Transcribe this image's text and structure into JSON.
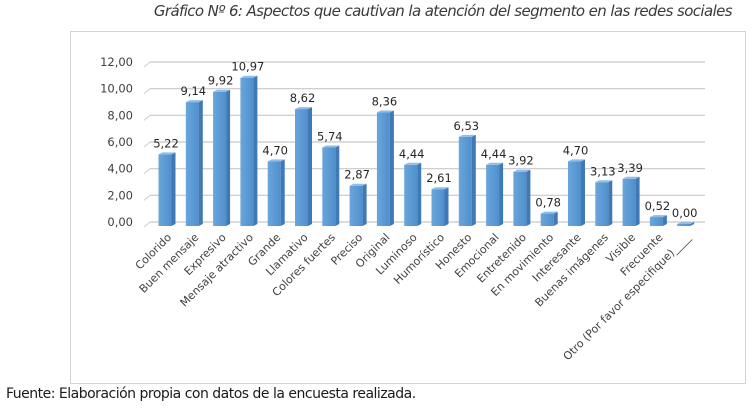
{
  "title": "Gráfico Nº 6: Aspectos que cautivan la atención del segmento en las redes sociales",
  "source": "Fuente: Elaboración propia con datos de la encuesta realizada.",
  "chart_data": {
    "type": "bar",
    "title": "Gráfico Nº 6: Aspectos que cautivan la atención del segmento en las redes sociales",
    "xlabel": "",
    "ylabel": "",
    "ylim": [
      0,
      12
    ],
    "yticks": [
      "0,00",
      "2,00",
      "4,00",
      "6,00",
      "8,00",
      "10,00",
      "12,00"
    ],
    "grid": true,
    "legend": "none",
    "bar_color": "#5b9bd5",
    "categories": [
      "Colorido",
      "Buen mensaje",
      "Expresivo",
      "Mensaje atractivo",
      "Grande",
      "Llamativo",
      "Colores fuertes",
      "Preciso",
      "Original",
      "Luminoso",
      "Humorístico",
      "Honesto",
      "Emocional",
      "Entretenido",
      "En movimiento",
      "Interesante",
      "Buenas imágenes",
      "Visible",
      "Frecuente",
      "Otro (Por favor especifique)____"
    ],
    "values": [
      5.22,
      9.14,
      9.92,
      10.97,
      4.7,
      8.62,
      5.74,
      2.87,
      8.36,
      4.44,
      2.61,
      6.53,
      4.44,
      3.92,
      0.78,
      4.7,
      3.13,
      3.39,
      0.52,
      0.0
    ],
    "data_labels": [
      "5,22",
      "9,14",
      "9,92",
      "10,97",
      "4,70",
      "8,62",
      "5,74",
      "2,87",
      "8,36",
      "4,44",
      "2,61",
      "6,53",
      "4,44",
      "3,92",
      "0,78",
      "4,70",
      "3,13",
      "3,39",
      "0,52",
      "0,00"
    ]
  }
}
